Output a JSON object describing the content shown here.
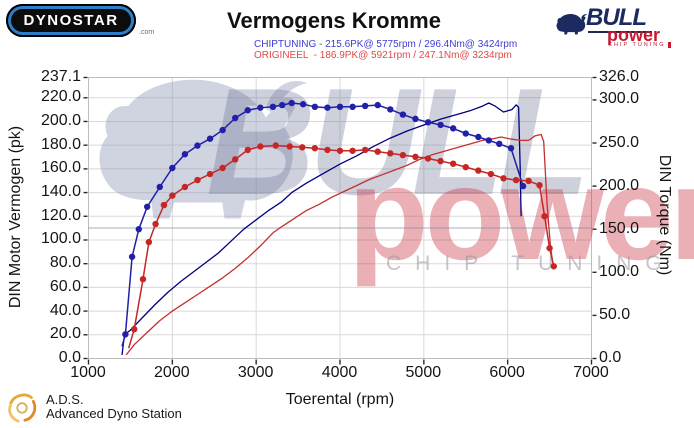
{
  "header": {
    "dynostar_logo_text": "DYNOSTAR",
    "dynostar_suffix": ".com",
    "title": "Vermogens Kromme",
    "chiptuning_line": "CHIPTUNING - 215.6PK@ 5775rpm / 296.4Nm@ 3424rpm",
    "origineel_line": "ORIGINEEL  - 186.9PK@ 5921rpm / 247.1Nm@ 3234rpm",
    "bull_logo": {
      "brand_top": "BULL",
      "brand_bottom": "power",
      "brand_sub": "CHIP TUNING"
    }
  },
  "watermark": {
    "bull_text": "BULL",
    "power_text": "power",
    "chip_text": "CHIP TUNING"
  },
  "footer": {
    "ads_title": "A.D.S.",
    "ads_subtitle": "Advanced Dyno Station"
  },
  "colors": {
    "chip_power": "#000082",
    "chip_torque": "#2020a8",
    "orig_power": "#c33030",
    "orig_torque": "#c62626",
    "grid": "#d8d8d8",
    "border": "#bdbdbd",
    "tick": "#2a2a2a",
    "chip_text": "#3d3dd2",
    "orig_text": "#e04848"
  },
  "chart_data": {
    "type": "line",
    "title": "Vermogens Kromme",
    "xlabel": "Toerental (rpm)",
    "ylabel_left": "DIN Motor Vermogen (pk)",
    "ylabel_right": "DIN Torque (Nm)",
    "x_range": [
      1000,
      7000
    ],
    "grid": true,
    "x_ticks": [
      {
        "v": 1000,
        "label": "1000"
      },
      {
        "v": 2000,
        "label": "2000"
      },
      {
        "v": 3000,
        "label": "3000"
      },
      {
        "v": 4000,
        "label": "4000"
      },
      {
        "v": 5000,
        "label": "5000"
      },
      {
        "v": 6000,
        "label": "6000"
      },
      {
        "v": 7000,
        "label": "7000"
      }
    ],
    "y_left": {
      "max": 237.1,
      "ticks": [
        {
          "v": 237.1,
          "label": "237.1"
        },
        {
          "v": 220,
          "label": "220.0"
        },
        {
          "v": 200,
          "label": "200.0"
        },
        {
          "v": 180,
          "label": "180.0"
        },
        {
          "v": 160,
          "label": "160.0"
        },
        {
          "v": 140,
          "label": "140.0"
        },
        {
          "v": 120,
          "label": "120.0"
        },
        {
          "v": 100,
          "label": "100.0"
        },
        {
          "v": 80,
          "label": "80.0"
        },
        {
          "v": 60,
          "label": "60.0"
        },
        {
          "v": 40,
          "label": "40.0"
        },
        {
          "v": 20,
          "label": "20.0"
        },
        {
          "v": 0,
          "label": "0.0"
        }
      ]
    },
    "y_right": {
      "max": 326,
      "ticks": [
        {
          "v": 326,
          "label": "326.0"
        },
        {
          "v": 300,
          "label": "300.0"
        },
        {
          "v": 250,
          "label": "250.0"
        },
        {
          "v": 200,
          "label": "200.0"
        },
        {
          "v": 150,
          "label": "150.0"
        },
        {
          "v": 100,
          "label": "100.0"
        },
        {
          "v": 50,
          "label": "50.0"
        },
        {
          "v": 0,
          "label": "0.0"
        }
      ]
    },
    "series": [
      {
        "name": "chiptuning-vermogen",
        "axis": "left",
        "color": "#000082",
        "width": 1.3,
        "dots": false,
        "points": [
          [
            1400,
            3
          ],
          [
            1430,
            20
          ],
          [
            1500,
            24
          ],
          [
            1650,
            35
          ],
          [
            1800,
            46
          ],
          [
            1950,
            56
          ],
          [
            2100,
            65
          ],
          [
            2250,
            73
          ],
          [
            2400,
            81
          ],
          [
            2550,
            89
          ],
          [
            2700,
            99
          ],
          [
            2850,
            109
          ],
          [
            3000,
            117
          ],
          [
            3150,
            125
          ],
          [
            3300,
            132
          ],
          [
            3424,
            140
          ],
          [
            3600,
            148
          ],
          [
            3800,
            156
          ],
          [
            4000,
            164
          ],
          [
            4200,
            171
          ],
          [
            4400,
            179
          ],
          [
            4600,
            186
          ],
          [
            4800,
            192
          ],
          [
            5000,
            197
          ],
          [
            5200,
            202
          ],
          [
            5400,
            206
          ],
          [
            5550,
            209
          ],
          [
            5700,
            213
          ],
          [
            5775,
            215.6
          ],
          [
            5850,
            213
          ],
          [
            5950,
            208
          ],
          [
            6050,
            210
          ],
          [
            6100,
            214
          ],
          [
            6130,
            212
          ],
          [
            6150,
            160
          ],
          [
            6160,
            120
          ]
        ]
      },
      {
        "name": "origineel-vermogen",
        "axis": "left",
        "color": "#c33030",
        "width": 1.3,
        "dots": false,
        "points": [
          [
            1450,
            3
          ],
          [
            1550,
            12
          ],
          [
            1700,
            22
          ],
          [
            1850,
            32
          ],
          [
            2000,
            40
          ],
          [
            2150,
            47
          ],
          [
            2300,
            54
          ],
          [
            2450,
            61
          ],
          [
            2600,
            68
          ],
          [
            2750,
            76
          ],
          [
            2900,
            85
          ],
          [
            3050,
            95
          ],
          [
            3200,
            106
          ],
          [
            3300,
            111
          ],
          [
            3450,
            118
          ],
          [
            3600,
            125
          ],
          [
            3750,
            130
          ],
          [
            3900,
            136
          ],
          [
            4050,
            141
          ],
          [
            4200,
            146
          ],
          [
            4350,
            151
          ],
          [
            4500,
            155
          ],
          [
            4650,
            159
          ],
          [
            4800,
            163
          ],
          [
            4950,
            168
          ],
          [
            5100,
            172
          ],
          [
            5250,
            175
          ],
          [
            5400,
            178
          ],
          [
            5550,
            181
          ],
          [
            5700,
            184
          ],
          [
            5800,
            185
          ],
          [
            5921,
            186.9
          ],
          [
            6050,
            185
          ],
          [
            6150,
            184
          ],
          [
            6250,
            184
          ],
          [
            6330,
            188
          ],
          [
            6400,
            189
          ],
          [
            6430,
            183
          ],
          [
            6470,
            130
          ],
          [
            6510,
            95
          ],
          [
            6540,
            80
          ]
        ]
      },
      {
        "name": "chiptuning-koppel",
        "axis": "right",
        "color": "#2020a8",
        "width": 1.5,
        "dots": true,
        "points": [
          [
            1400,
            14
          ],
          [
            1440,
            28
          ],
          [
            1520,
            118
          ],
          [
            1600,
            150
          ],
          [
            1700,
            176
          ],
          [
            1850,
            199
          ],
          [
            2000,
            221
          ],
          [
            2150,
            237
          ],
          [
            2300,
            247
          ],
          [
            2450,
            255
          ],
          [
            2600,
            265
          ],
          [
            2750,
            279
          ],
          [
            2900,
            288
          ],
          [
            3050,
            291
          ],
          [
            3200,
            292
          ],
          [
            3310,
            294
          ],
          [
            3424,
            296.4
          ],
          [
            3560,
            295
          ],
          [
            3700,
            292
          ],
          [
            3850,
            291
          ],
          [
            4000,
            292
          ],
          [
            4150,
            292
          ],
          [
            4300,
            293
          ],
          [
            4450,
            294
          ],
          [
            4600,
            289
          ],
          [
            4750,
            283
          ],
          [
            4900,
            278
          ],
          [
            5050,
            274
          ],
          [
            5200,
            271
          ],
          [
            5350,
            267
          ],
          [
            5500,
            261
          ],
          [
            5650,
            257
          ],
          [
            5775,
            253
          ],
          [
            5900,
            249
          ],
          [
            6040,
            244
          ],
          [
            6184,
            200
          ]
        ]
      },
      {
        "name": "origineel-koppel",
        "axis": "right",
        "color": "#c62626",
        "width": 1.5,
        "dots": true,
        "points": [
          [
            1480,
            12
          ],
          [
            1545,
            34
          ],
          [
            1650,
            92
          ],
          [
            1720,
            135
          ],
          [
            1800,
            156
          ],
          [
            1900,
            178
          ],
          [
            2000,
            189
          ],
          [
            2150,
            199
          ],
          [
            2300,
            207
          ],
          [
            2450,
            214
          ],
          [
            2600,
            221
          ],
          [
            2750,
            231
          ],
          [
            2900,
            242
          ],
          [
            3050,
            246
          ],
          [
            3234,
            247.1
          ],
          [
            3400,
            246
          ],
          [
            3550,
            245
          ],
          [
            3700,
            244
          ],
          [
            3850,
            242
          ],
          [
            4000,
            241
          ],
          [
            4150,
            241
          ],
          [
            4300,
            242
          ],
          [
            4450,
            240
          ],
          [
            4600,
            238
          ],
          [
            4750,
            236
          ],
          [
            4900,
            234
          ],
          [
            5050,
            232
          ],
          [
            5200,
            229
          ],
          [
            5350,
            226
          ],
          [
            5500,
            222
          ],
          [
            5650,
            218
          ],
          [
            5800,
            214
          ],
          [
            5950,
            209
          ],
          [
            6100,
            207
          ],
          [
            6250,
            206
          ],
          [
            6380,
            201
          ],
          [
            6440,
            165
          ],
          [
            6500,
            128
          ],
          [
            6550,
            107
          ]
        ]
      }
    ]
  }
}
